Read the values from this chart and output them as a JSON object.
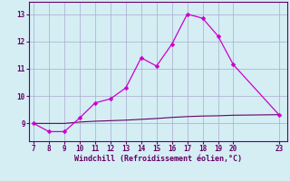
{
  "x_main": [
    7,
    8,
    9,
    10,
    11,
    12,
    13,
    14,
    15,
    16,
    17,
    18,
    19,
    20,
    23
  ],
  "y_main": [
    9.0,
    8.7,
    8.7,
    9.2,
    9.75,
    9.9,
    10.3,
    11.4,
    11.1,
    11.9,
    13.0,
    12.85,
    12.2,
    11.15,
    9.3
  ],
  "x_flat": [
    7,
    8,
    9,
    10,
    11,
    12,
    13,
    14,
    15,
    16,
    17,
    18,
    19,
    20,
    23
  ],
  "y_flat": [
    9.0,
    9.0,
    9.0,
    9.05,
    9.08,
    9.1,
    9.12,
    9.15,
    9.18,
    9.22,
    9.25,
    9.27,
    9.28,
    9.3,
    9.32
  ],
  "line_color": "#cc00cc",
  "flat_color": "#660066",
  "bg_color": "#d4eef4",
  "grid_color": "#aaaacc",
  "xlabel": "Windchill (Refroidissement éolien,°C)",
  "xticks": [
    7,
    8,
    9,
    10,
    11,
    12,
    13,
    14,
    15,
    16,
    17,
    18,
    19,
    20,
    23
  ],
  "yticks": [
    9,
    10,
    11,
    12,
    13
  ],
  "xlim": [
    6.7,
    23.5
  ],
  "ylim": [
    8.35,
    13.45
  ],
  "xlabel_color": "#660066",
  "tick_color": "#660066",
  "axis_color": "#660066",
  "marker_size": 2.5
}
